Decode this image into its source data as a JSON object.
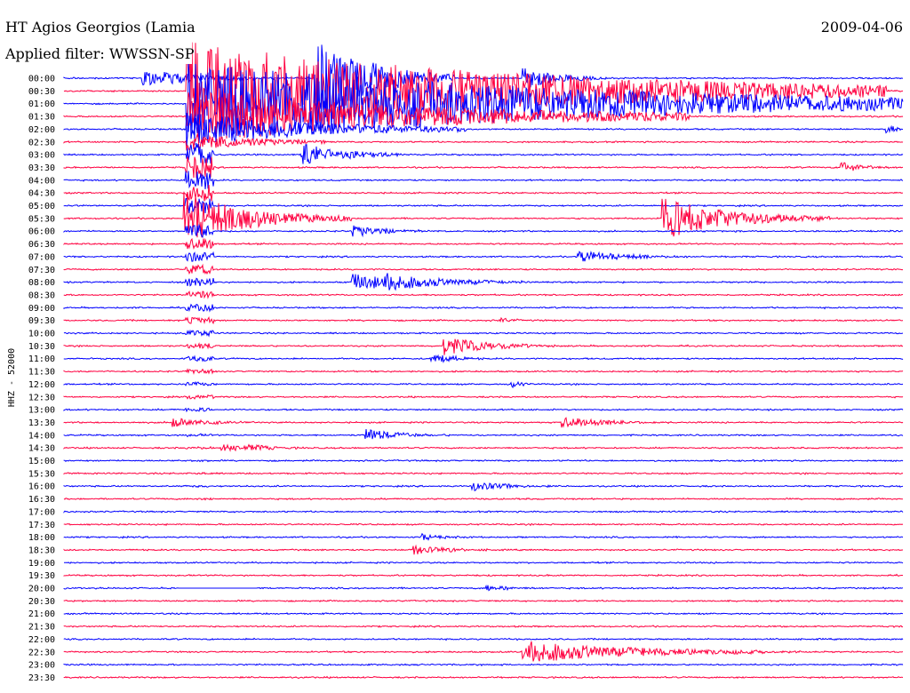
{
  "header": {
    "station": "HT Agios Georgios (Lamia",
    "date": "2009-04-06",
    "filter": "Applied filter: WWSSN-SP"
  },
  "colors": {
    "even_trace": "#0000ff",
    "odd_trace": "#ff0040",
    "background": "#ffffff"
  },
  "chart_data": {
    "type": "line",
    "title": "HT Agios Georgios (Lamia",
    "ylabel": "HHZ - 52000",
    "xlabel": "",
    "rows": [
      "00:00",
      "00:30",
      "01:00",
      "01:30",
      "02:00",
      "02:30",
      "03:00",
      "03:30",
      "04:00",
      "04:30",
      "05:00",
      "05:30",
      "06:00",
      "06:30",
      "07:00",
      "07:30",
      "08:00",
      "08:30",
      "09:00",
      "09:30",
      "10:00",
      "10:30",
      "11:00",
      "11:30",
      "12:00",
      "12:30",
      "13:00",
      "13:30",
      "14:00",
      "14:30",
      "15:00",
      "15:30",
      "16:00",
      "16:30",
      "17:00",
      "17:30",
      "18:00",
      "18:30",
      "19:00",
      "19:30",
      "20:00",
      "20:30",
      "21:00",
      "21:30",
      "22:00",
      "22:30",
      "23:00",
      "23:30"
    ],
    "minutes_per_row": 30,
    "events": [
      {
        "row": 0,
        "minute": 2.8,
        "amp": 1.6,
        "dur": 5,
        "big": false
      },
      {
        "row": 0,
        "minute": 9.0,
        "amp": 9.0,
        "dur": 5,
        "big": false
      },
      {
        "row": 0,
        "minute": 16.4,
        "amp": 2.2,
        "dur": 3,
        "big": false
      },
      {
        "row": 1,
        "minute": 16.5,
        "amp": 3.5,
        "dur": 4,
        "big": false
      },
      {
        "row": 2,
        "minute": 16.4,
        "amp": 2.0,
        "dur": 2,
        "big": false
      },
      {
        "row": 3,
        "minute": 18.6,
        "amp": 0.9,
        "dur": 3,
        "big": false
      },
      {
        "row": 4,
        "minute": 29.4,
        "amp": 0.8,
        "dur": 1,
        "big": false
      },
      {
        "row": 6,
        "minute": 8.5,
        "amp": 2.0,
        "dur": 4,
        "big": false
      },
      {
        "row": 7,
        "minute": 27.8,
        "amp": 0.9,
        "dur": 2,
        "big": false
      },
      {
        "row": 11,
        "minute": 4.3,
        "amp": 5.0,
        "dur": 6,
        "big": false
      },
      {
        "row": 11,
        "minute": 21.4,
        "amp": 4.0,
        "dur": 6,
        "big": false
      },
      {
        "row": 12,
        "minute": 10.3,
        "amp": 1.0,
        "dur": 3,
        "big": false
      },
      {
        "row": 14,
        "minute": 18.4,
        "amp": 1.0,
        "dur": 4,
        "big": false
      },
      {
        "row": 16,
        "minute": 10.3,
        "amp": 1.6,
        "dur": 5,
        "big": false
      },
      {
        "row": 16,
        "minute": 11.4,
        "amp": 1.7,
        "dur": 5,
        "big": false
      },
      {
        "row": 19,
        "minute": 15.6,
        "amp": 0.5,
        "dur": 1,
        "big": false
      },
      {
        "row": 21,
        "minute": 13.6,
        "amp": 1.6,
        "dur": 4,
        "big": false
      },
      {
        "row": 22,
        "minute": 13.1,
        "amp": 1.0,
        "dur": 2,
        "big": false
      },
      {
        "row": 24,
        "minute": 16.0,
        "amp": 0.6,
        "dur": 1,
        "big": false
      },
      {
        "row": 27,
        "minute": 3.9,
        "amp": 0.8,
        "dur": 3,
        "big": false
      },
      {
        "row": 27,
        "minute": 17.8,
        "amp": 0.9,
        "dur": 4,
        "big": false
      },
      {
        "row": 28,
        "minute": 10.8,
        "amp": 1.0,
        "dur": 3,
        "big": false
      },
      {
        "row": 29,
        "minute": 5.6,
        "amp": 0.7,
        "dur": 2,
        "big": false
      },
      {
        "row": 29,
        "minute": 6.6,
        "amp": 0.6,
        "dur": 2,
        "big": false
      },
      {
        "row": 32,
        "minute": 14.6,
        "amp": 0.8,
        "dur": 3,
        "big": false
      },
      {
        "row": 36,
        "minute": 12.8,
        "amp": 0.5,
        "dur": 2,
        "big": false
      },
      {
        "row": 37,
        "minute": 12.5,
        "amp": 0.8,
        "dur": 3,
        "big": false
      },
      {
        "row": 40,
        "minute": 15.1,
        "amp": 0.5,
        "dur": 2,
        "big": false
      },
      {
        "row": 45,
        "minute": 16.4,
        "amp": 2.0,
        "dur": 10,
        "big": false
      },
      {
        "row": 45,
        "minute": 17.6,
        "amp": 1.5,
        "dur": 8,
        "big": false
      }
    ],
    "mainshock": {
      "row": 1,
      "minute": 4.4
    }
  }
}
